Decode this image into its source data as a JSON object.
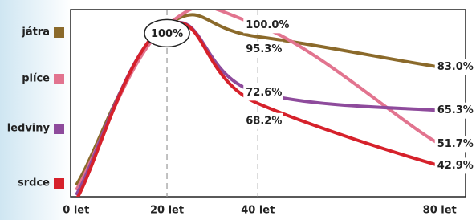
{
  "chart_data": {
    "type": "line",
    "x": [
      0,
      20,
      40,
      80
    ],
    "x_labels": [
      "0 let",
      "20 let",
      "40 let",
      "80 let"
    ],
    "xlim": [
      -1.2,
      85.7
    ],
    "ylim": [
      30.3,
      106.3
    ],
    "annotation": "100%",
    "series": [
      {
        "name": "játra",
        "color": "#8b6a2b",
        "values": [
          35,
          100,
          95.3,
          83.0
        ],
        "value_labels": [
          null,
          null,
          "95.3%",
          "83.0%"
        ]
      },
      {
        "name": "plíce",
        "color": "#e2748f",
        "values": [
          33,
          100,
          100.0,
          51.7
        ],
        "value_labels": [
          null,
          null,
          "100.0%",
          "51.7%"
        ]
      },
      {
        "name": "ledviny",
        "color": "#8e4b9c",
        "values": [
          31,
          100,
          72.6,
          65.3
        ],
        "value_labels": [
          null,
          null,
          "72.6%",
          "65.3%"
        ]
      },
      {
        "name": "srdce",
        "color": "#d6212b",
        "values": [
          29,
          100,
          68.2,
          42.9
        ],
        "value_labels": [
          null,
          null,
          "68.2%",
          "42.9%"
        ]
      }
    ]
  }
}
